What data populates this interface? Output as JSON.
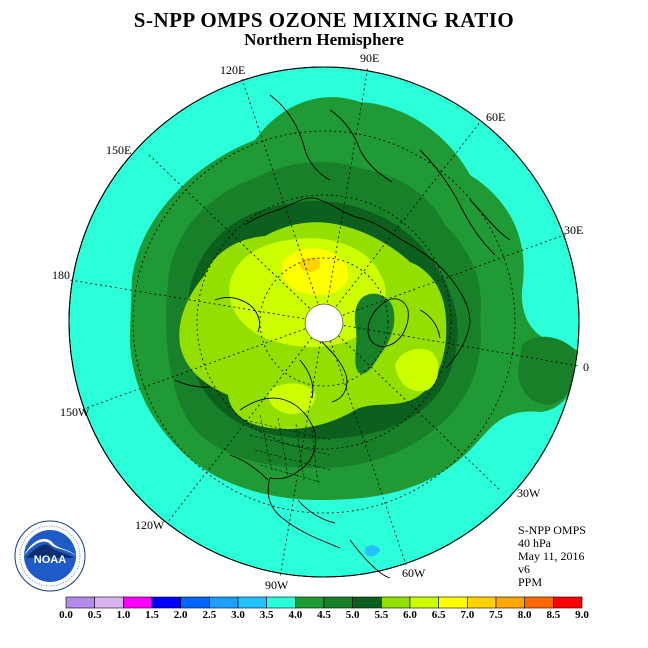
{
  "title": "S-NPP OMPS OZONE MIXING RATIO",
  "subtitle": "Northern Hemisphere",
  "longitude_labels": {
    "lon_90e": "90E",
    "lon_120e": "120E",
    "lon_60e": "60E",
    "lon_150e": "150E",
    "lon_30e": "30E",
    "lon_180": "180",
    "lon_0": "0",
    "lon_150w": "150W",
    "lon_30w": "30W",
    "lon_120w": "120W",
    "lon_60w": "60W",
    "lon_90w": "90W"
  },
  "info": {
    "instrument": "S-NPP OMPS",
    "level": "40 hPa",
    "date": "May 11, 2016",
    "version": "v6",
    "units": "PPM"
  },
  "colorbar": {
    "ticks": [
      "0.0",
      "0.5",
      "1.0",
      "1.5",
      "2.0",
      "2.5",
      "3.0",
      "3.5",
      "4.0",
      "4.5",
      "5.0",
      "5.5",
      "6.0",
      "6.5",
      "7.0",
      "7.5",
      "8.0",
      "8.5",
      "9.0"
    ],
    "colors": [
      "#b38be8",
      "#d9b3f0",
      "#ff00ff",
      "#0000ff",
      "#0066ff",
      "#1f9fff",
      "#22c2ff",
      "#29ffd8",
      "#1f9a35",
      "#19802a",
      "#0d5f1e",
      "#93e000",
      "#ccff00",
      "#ffff00",
      "#ffd200",
      "#ffa600",
      "#ff6a00",
      "#ff0000",
      "#8a5a3a"
    ]
  },
  "map_colors": {
    "background": "#2affd9",
    "level_4": "#1f9a35",
    "level_4_5": "#19802a",
    "level_5": "#0d5f1e",
    "level_5_5": "#93e000",
    "level_6": "#ccff00",
    "level_6_5": "#ffff00",
    "level_7": "#ffd200",
    "level_3": "#22c2ff"
  },
  "logo": {
    "text": "NOAA",
    "ring_text": "NATIONAL OCEANIC AND ATMOSPHERIC ADMINISTRATION · U.S. DEPARTMENT OF COMMERCE"
  }
}
